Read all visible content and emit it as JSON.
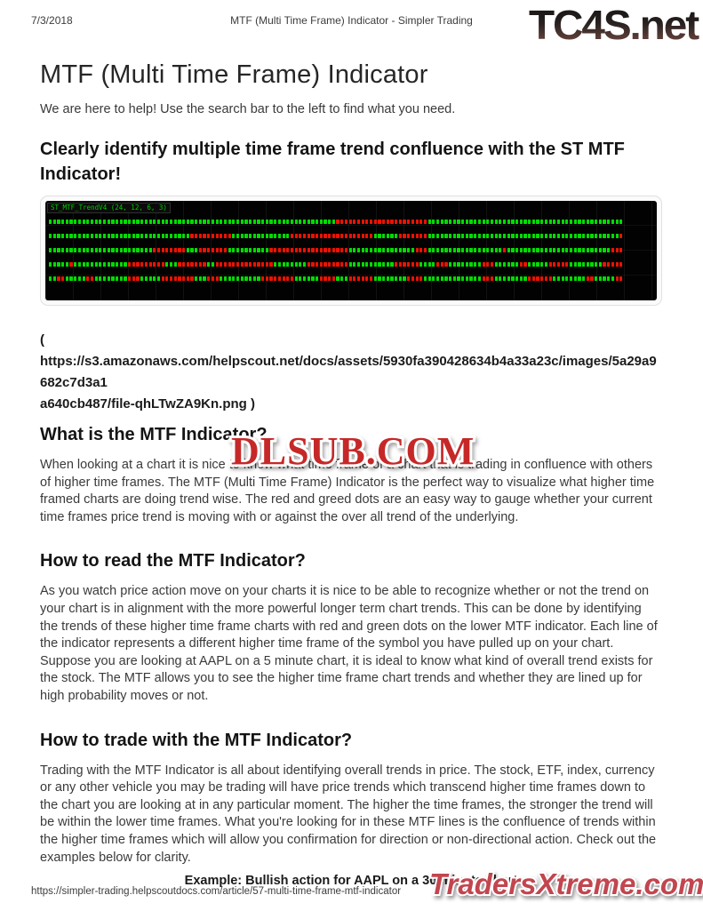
{
  "print_header": {
    "date": "7/3/2018",
    "title": "MTF (Multi Time Frame) Indicator - Simpler Trading"
  },
  "watermarks": {
    "top_logo": "TC4S.net",
    "center_overlay": "DLSUB.COM",
    "bottom_logo": "TradersXtreme.com",
    "overlay_red": "#c62828",
    "bottom_red": "#c2454f"
  },
  "article": {
    "title": "MTF (Multi Time Frame) Indicator",
    "intro": "We are here to help! Use the search bar to the left to find what you need.",
    "headline": "Clearly identify multiple time frame trend confluence with the ST MTF Indicator!",
    "image_caption": {
      "open_paren": "(",
      "url_line1": "https://s3.amazonaws.com/helpscout.net/docs/assets/5930fa390428634b4a33a23c/images/5a29a9682c7d3a1",
      "url_line2": "a640cb487/file-qhLTwZA9Kn.png )"
    },
    "sections": [
      {
        "heading": "What is the MTF Indicator?",
        "body": "When looking at a chart it is nice to know what time frame of a chart that is trading in confluence with others of higher time frames. The MTF (Multi Time Frame) Indicator is the perfect way to visualize what higher time framed charts are doing trend wise. The red and greed dots are an easy way to gauge whether your current time frames price trend is moving with or against the over all trend of the underlying."
      },
      {
        "heading": "How to read the MTF Indicator?",
        "body": "As you watch price action move on your charts it is nice to be able to recognize whether or not the trend on your chart is in alignment with the more powerful longer term chart trends. This can be done by identifying the trends of these higher time frame charts with red and green dots on the lower MTF indicator. Each line of the indicator represents a different higher time frame of the symbol you have pulled up on your chart. Suppose you are looking at AAPL on a 5 minute chart, it is ideal to know what kind of overall trend exists for the stock. The MTF allows you to see the higher time frame chart trends and whether they are lined up for high probability moves or not."
      },
      {
        "heading": "How to trade with the MTF Indicator?",
        "body": "Trading with the MTF Indicator is all about identifying overall trends in price. The stock, ETF, index, currency or any other vehicle you may be trading will have price trends which transcend higher time frames down to the chart you are looking at in any particular moment. The higher the time frames, the stronger the trend will be within the lower time frames. What you're looking for in these MTF lines is the confluence of trends within the higher time frames which will allow you confirmation for direction or non-directional action. Check out the examples below for clarity."
      }
    ],
    "example_caption": "Example: Bullish action for AAPL on a 30 minute chart"
  },
  "chart": {
    "label": "ST_MTF_TrendV4 (24, 12, 6, 3)",
    "colors": {
      "green": "#00dd00",
      "red": "#ee1100",
      "background": "#020202"
    },
    "rows": [
      [
        [
          "g",
          69
        ],
        [
          "r",
          22
        ],
        [
          "g",
          47
        ]
      ],
      [
        [
          "g",
          34
        ],
        [
          "r",
          10
        ],
        [
          "g",
          14
        ],
        [
          "r",
          20
        ],
        [
          "g",
          6
        ],
        [
          "r",
          7
        ],
        [
          "g",
          46
        ],
        [
          "r",
          1
        ]
      ],
      [
        [
          "g",
          25
        ],
        [
          "r",
          8
        ],
        [
          "g",
          3
        ],
        [
          "r",
          7
        ],
        [
          "g",
          10
        ],
        [
          "r",
          19
        ],
        [
          "g",
          16
        ],
        [
          "r",
          3
        ],
        [
          "g",
          18
        ],
        [
          "r",
          1
        ],
        [
          "g",
          25
        ],
        [
          "r",
          3
        ]
      ],
      [
        [
          "g",
          5
        ],
        [
          "r",
          1
        ],
        [
          "g",
          13
        ],
        [
          "r",
          9
        ],
        [
          "g",
          3
        ],
        [
          "r",
          7
        ],
        [
          "g",
          2
        ],
        [
          "r",
          14
        ],
        [
          "g",
          8
        ],
        [
          "r",
          10
        ],
        [
          "g",
          11
        ],
        [
          "r",
          6
        ],
        [
          "g",
          4
        ],
        [
          "r",
          3
        ],
        [
          "g",
          8
        ],
        [
          "r",
          3
        ],
        [
          "g",
          6
        ],
        [
          "r",
          2
        ],
        [
          "g",
          5
        ],
        [
          "r",
          5
        ],
        [
          "g",
          8
        ],
        [
          "r",
          5
        ]
      ],
      [
        [
          "g",
          2
        ],
        [
          "r",
          2
        ],
        [
          "g",
          5
        ],
        [
          "r",
          2
        ],
        [
          "g",
          8
        ],
        [
          "r",
          3
        ],
        [
          "g",
          5
        ],
        [
          "r",
          8
        ],
        [
          "g",
          3
        ],
        [
          "r",
          3
        ],
        [
          "g",
          10
        ],
        [
          "r",
          8
        ],
        [
          "g",
          6
        ],
        [
          "r",
          4
        ],
        [
          "g",
          3
        ],
        [
          "r",
          6
        ],
        [
          "g",
          8
        ],
        [
          "r",
          4
        ],
        [
          "g",
          14
        ],
        [
          "r",
          3
        ],
        [
          "g",
          8
        ],
        [
          "r",
          6
        ],
        [
          "g",
          8
        ],
        [
          "r",
          2
        ],
        [
          "g",
          5
        ],
        [
          "r",
          2
        ]
      ]
    ]
  },
  "print_footer": {
    "url": "https://simpler-trading.helpscoutdocs.com/article/57-multi-time-frame-mtf-indicator"
  }
}
